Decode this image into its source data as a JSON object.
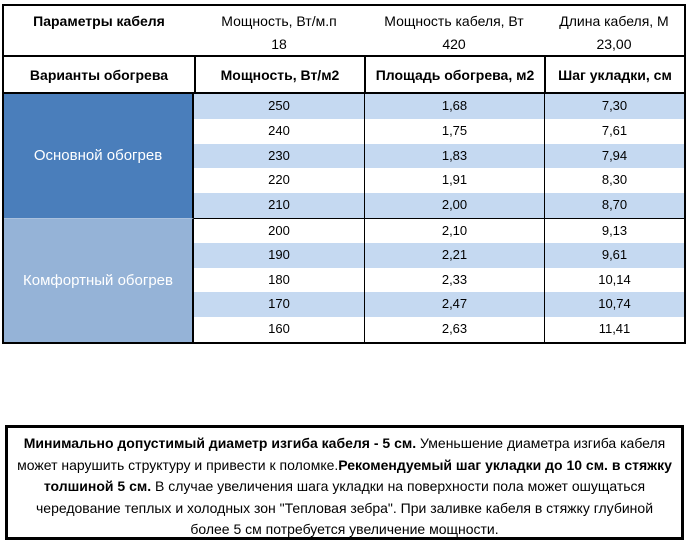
{
  "cable_params": {
    "title": "Параметры кабеля",
    "power_per_meter_label": "Мощность, Вт/м.п",
    "power_per_meter_value": "18",
    "cable_power_label": "Мощность кабеля, Вт",
    "cable_power_value": "420",
    "cable_length_label": "Длина кабеля, М",
    "cable_length_value": "23,00"
  },
  "heating_table": {
    "headers": {
      "variants": "Варианты обогрева",
      "power": "Мощность, Вт/м2",
      "area": "Площадь обогрева, м2",
      "step": "Шаг укладки, см"
    },
    "sections": [
      {
        "label": "Основной обогрев",
        "rows": [
          {
            "power": "250",
            "area": "1,68",
            "step": "7,30"
          },
          {
            "power": "240",
            "area": "1,75",
            "step": "7,61"
          },
          {
            "power": "230",
            "area": "1,83",
            "step": "7,94"
          },
          {
            "power": "220",
            "area": "1,91",
            "step": "8,30"
          },
          {
            "power": "210",
            "area": "2,00",
            "step": "8,70"
          }
        ]
      },
      {
        "label": "Комфортный обогрев",
        "rows": [
          {
            "power": "200",
            "area": "2,10",
            "step": "9,13"
          },
          {
            "power": "190",
            "area": "2,21",
            "step": "9,61"
          },
          {
            "power": "180",
            "area": "2,33",
            "step": "10,14"
          },
          {
            "power": "170",
            "area": "2,47",
            "step": "10,74"
          },
          {
            "power": "160",
            "area": "2,63",
            "step": "11,41"
          }
        ]
      }
    ]
  },
  "note": {
    "bold_1": "Минимально допустимый диаметр изгиба кабеля - 5 см.",
    "text_1": " Уменьшение диаметра изгиба кабеля может нарушить структуру и привести к поломке.",
    "bold_2": "Рекомендуемый шаг укладки до 10 см. в стяжку толшиной 5 см.",
    "text_2": " В случае увеличения шага укладки на поверхности пола может ошущаться чередование теплых и холодных зон \"Тепловая зебра\". При заливке кабеля в стяжку глубиной более 5 см потребуется увеличение мощности."
  },
  "colors": {
    "main_section_blue": "#4a7ebb",
    "comfort_section_blue": "#95b3d7",
    "row_stripe_blue": "#c5d9f1",
    "border_black": "#000000"
  }
}
